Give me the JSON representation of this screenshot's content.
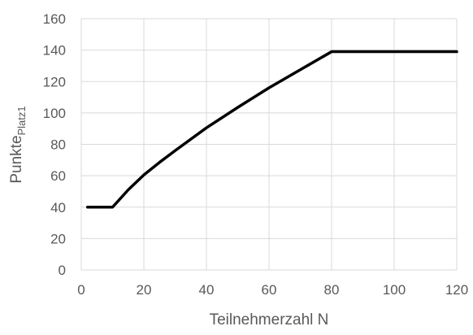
{
  "chart_data": {
    "type": "line",
    "xlabel": "Teilnehmerzahl N",
    "ylabel": {
      "main": "Punkte",
      "subscript": "Platz1"
    },
    "xlim": [
      0,
      120
    ],
    "ylim": [
      0,
      160
    ],
    "x_ticks": [
      "0",
      "20",
      "40",
      "60",
      "80",
      "100",
      "120"
    ],
    "y_ticks": [
      "0",
      "20",
      "40",
      "60",
      "80",
      "100",
      "120",
      "140",
      "160"
    ],
    "grid": true,
    "legend": "none",
    "series": [
      {
        "color": "#000000",
        "x": [
          2,
          10,
          15,
          20,
          25,
          30,
          40,
          50,
          60,
          70,
          80,
          90,
          100,
          110,
          120
        ],
        "y": [
          40,
          40,
          51,
          60.5,
          68.5,
          76,
          90.5,
          103.5,
          116,
          127.5,
          139,
          139,
          139,
          139,
          139
        ]
      }
    ]
  }
}
